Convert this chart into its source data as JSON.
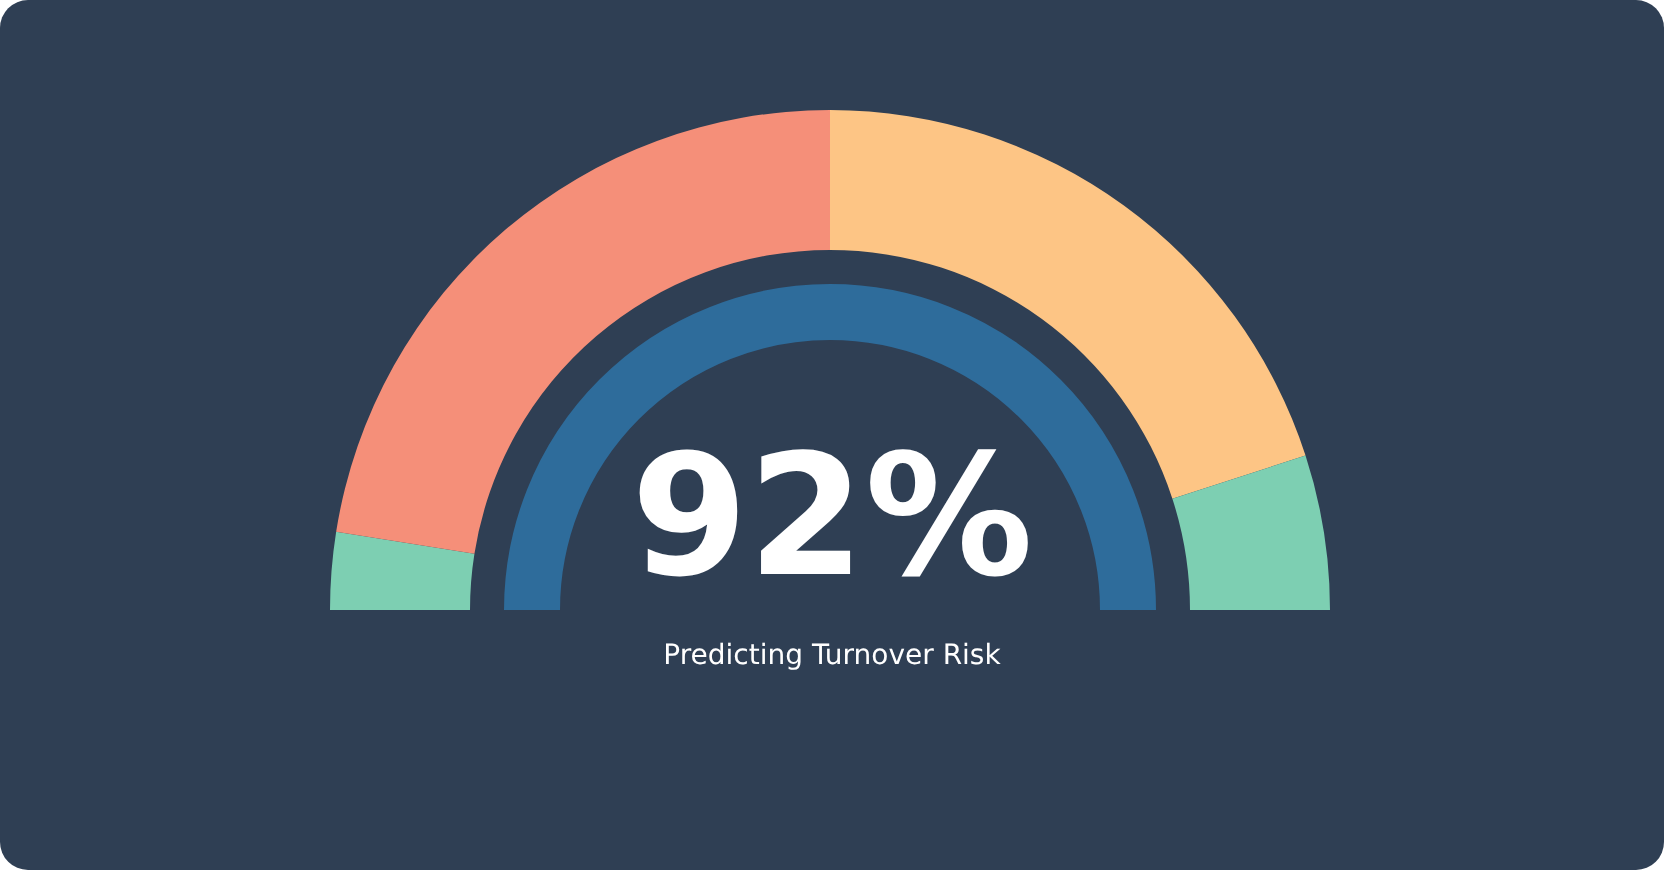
{
  "chart_data": {
    "type": "donut",
    "categories": [
      null,
      null,
      null,
      null
    ],
    "values": [
      5,
      45,
      40,
      10
    ],
    "colors": [
      "#7dcfb2",
      "#f58f79",
      "#fdc585",
      "#7dcfb2"
    ],
    "annotations": [
      "92%",
      "Predicting Turnover Risk"
    ]
  }
}
